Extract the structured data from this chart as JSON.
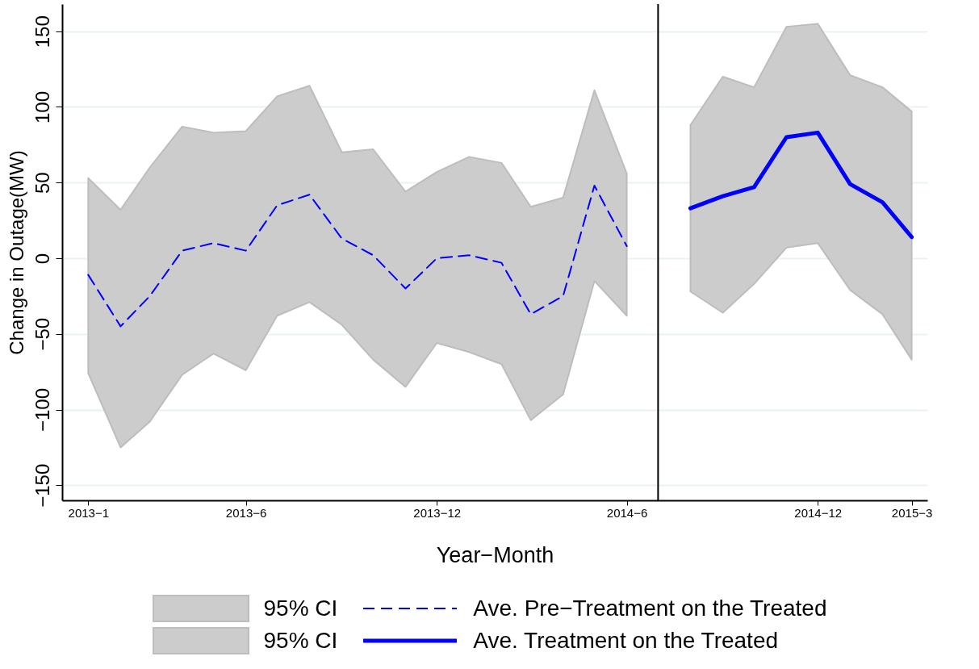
{
  "chart_data": {
    "type": "line",
    "xlabel": "Year−Month",
    "ylabel": "Change in Outage(MW)",
    "xlim": [
      "2012-12-07",
      "2015-03-16"
    ],
    "ylim": [
      -160,
      168
    ],
    "xticks": [
      {
        "value": "2013-01",
        "label": "2013−1"
      },
      {
        "value": "2013-06",
        "label": "2013−6"
      },
      {
        "value": "2013-12",
        "label": "2013−12"
      },
      {
        "value": "2014-06",
        "label": "2014−6"
      },
      {
        "value": "2014-12",
        "label": "2014−12"
      },
      {
        "value": "2015-03",
        "label": "2015−3"
      }
    ],
    "yticks": [
      {
        "value": -150,
        "label": "−150"
      },
      {
        "value": -100,
        "label": "−100"
      },
      {
        "value": -50,
        "label": "−50"
      },
      0,
      50,
      100,
      150
    ],
    "grid": "y",
    "legend": "bottom",
    "annotations": [
      "95% CI",
      "95% CI"
    ],
    "ref_lines": [
      {
        "axis": "x",
        "value": "2014-07",
        "color": "#000000"
      }
    ],
    "series": [
      {
        "name": "Ave. Pre−Treatment on the Treated",
        "color": "#0000ff",
        "line_style": "dashed",
        "x": [
          "2013-01",
          "2013-02",
          "2013-03",
          "2013-04",
          "2013-05",
          "2013-06",
          "2013-07",
          "2013-08",
          "2013-09",
          "2013-10",
          "2013-11",
          "2013-12",
          "2014-01",
          "2014-02",
          "2014-03",
          "2014-04",
          "2014-05",
          "2014-06"
        ],
        "values": [
          -11,
          -45,
          -25,
          5,
          10,
          5,
          35,
          42,
          13,
          2,
          -20,
          0,
          2,
          -3,
          -37,
          -25,
          48,
          8
        ],
        "lower": [
          -76,
          -125,
          -108,
          -77,
          -63,
          -74,
          -38,
          -29,
          -44,
          -67,
          -85,
          -56,
          -62,
          -70,
          -107,
          -90,
          -15,
          -38
        ],
        "upper": [
          53,
          32,
          60,
          87,
          83,
          84,
          107,
          114,
          70,
          72,
          44,
          57,
          67,
          63,
          34,
          40,
          111,
          56
        ]
      },
      {
        "name": "Ave. Treatment on the Treated",
        "color": "#0000ff",
        "line_style": "solid",
        "x": [
          "2014-08",
          "2014-09",
          "2014-10",
          "2014-11",
          "2014-12",
          "2015-01",
          "2015-02",
          "2015-03"
        ],
        "values": [
          33,
          41,
          47,
          80,
          83,
          49,
          37,
          14
        ],
        "lower": [
          -22,
          -36,
          -17,
          7,
          10,
          -21,
          -37,
          -67
        ],
        "upper": [
          88,
          120,
          113,
          153,
          155,
          121,
          113,
          97
        ]
      }
    ]
  }
}
